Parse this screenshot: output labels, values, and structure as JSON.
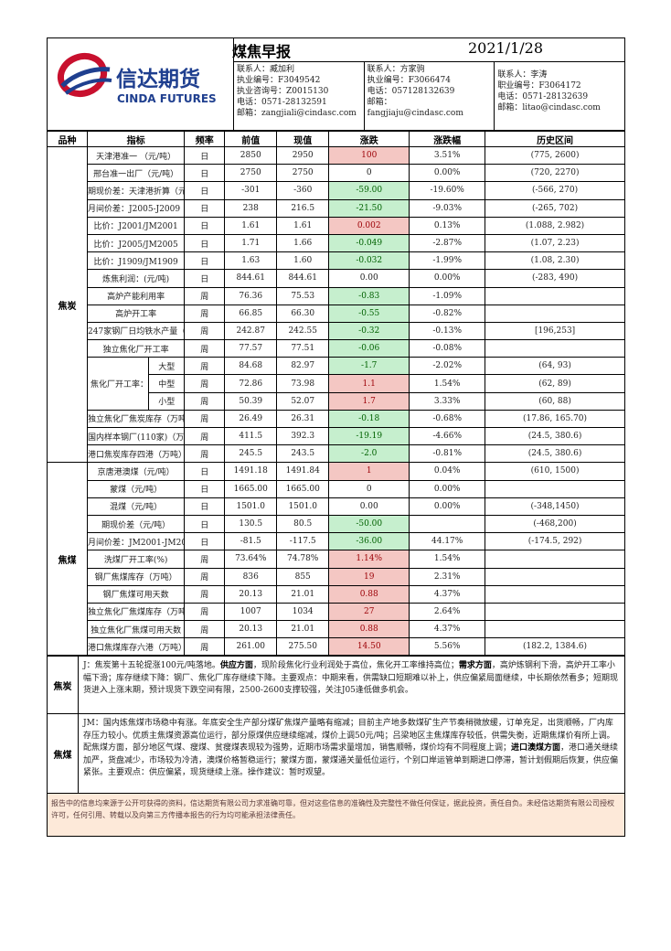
{
  "header": {
    "title": "煤焦早报",
    "date": "2021/1/28",
    "logo_cn": "信达期货",
    "logo_en": "CINDA FUTURES",
    "contacts": [
      [
        "联系人：臧加利",
        "执业编号：F3049542",
        "执业咨询号：Z0015130",
        "电话：0571-28132591",
        "邮箱：zangjiali@cindasc.com"
      ],
      [
        "联系人：方家驹",
        "执业编号：F3066474",
        "电话：057128132639",
        "邮箱：",
        "fangjiaju@cindasc.com"
      ],
      [
        "联系人：李涛",
        "职业编号：F3064172",
        "电话：0571-28132639",
        "邮箱：litao@cindasc.com"
      ]
    ]
  },
  "table": {
    "columns": [
      "品种",
      "指标",
      "频率",
      "前值",
      "现值",
      "涨跌",
      "涨跌幅",
      "历史区间"
    ],
    "coke_category": "焦炭",
    "coal_category": "焦煤",
    "coke_rows": [
      {
        "name": "天津港准一 （元/吨）",
        "freq": "日",
        "prev": "2850",
        "cur": "2950",
        "chg": "100",
        "pct": "3.51%",
        "range": "(775, 2600)",
        "dir": "up"
      },
      {
        "name": "邢台准一出厂（元/吨）",
        "freq": "日",
        "prev": "2750",
        "cur": "2750",
        "chg": "0",
        "pct": "0.00%",
        "range": "(720, 2270)",
        "dir": ""
      },
      {
        "name": "期现价差：天津港折算（元/吨）",
        "freq": "日",
        "prev": "-301",
        "cur": "-360",
        "chg": "-59.00",
        "pct": "-19.60%",
        "range": "(-566, 270)",
        "dir": "down"
      },
      {
        "name": "月间价差：J2005-J2009（元/吨）",
        "freq": "日",
        "prev": "238",
        "cur": "216.5",
        "chg": "-21.50",
        "pct": "-9.03%",
        "range": "(-265, 702)",
        "dir": "down"
      },
      {
        "name": "比价：J2001/JM2001",
        "freq": "日",
        "prev": "1.61",
        "cur": "1.61",
        "chg": "0.002",
        "pct": "0.13%",
        "range": "(1.088, 2.982)",
        "dir": "up"
      },
      {
        "name": "比价：J2005/JM2005",
        "freq": "日",
        "prev": "1.71",
        "cur": "1.66",
        "chg": "-0.049",
        "pct": "-2.87%",
        "range": "(1.07, 2.23)",
        "dir": "down"
      },
      {
        "name": "比价：J1909/JM1909",
        "freq": "日",
        "prev": "1.63",
        "cur": "1.60",
        "chg": "-0.032",
        "pct": "-1.99%",
        "range": "(1.08, 2.30)",
        "dir": "down"
      },
      {
        "name": "炼焦利润：(元/吨)",
        "freq": "日",
        "prev": "844.61",
        "cur": "844.61",
        "chg": "0.00",
        "pct": "0.00%",
        "range": "(-283, 490)",
        "dir": ""
      },
      {
        "name": "高炉产能利用率",
        "freq": "周",
        "prev": "76.36",
        "cur": "75.53",
        "chg": "-0.83",
        "pct": "-1.09%",
        "range": "",
        "dir": "down"
      },
      {
        "name": "高炉开工率",
        "freq": "周",
        "prev": "66.85",
        "cur": "66.30",
        "chg": "-0.55",
        "pct": "-0.82%",
        "range": "",
        "dir": "down"
      },
      {
        "name": "247家钢厂日均铁水产量（万吨）",
        "freq": "周",
        "prev": "242.87",
        "cur": "242.55",
        "chg": "-0.32",
        "pct": "-0.13%",
        "range": "[196,253]",
        "dir": "down"
      },
      {
        "name": "独立焦化厂开工率",
        "freq": "周",
        "prev": "77.57",
        "cur": "77.51",
        "chg": "-0.06",
        "pct": "-0.08%",
        "range": "",
        "dir": "down"
      }
    ],
    "coking_group": {
      "label": "焦化厂开工率：（%）",
      "rows": [
        {
          "name": "大型",
          "freq": "周",
          "prev": "84.68",
          "cur": "82.97",
          "chg": "-1.7",
          "pct": "-2.02%",
          "range": "(64, 93)",
          "dir": "down"
        },
        {
          "name": "中型",
          "freq": "周",
          "prev": "72.86",
          "cur": "73.98",
          "chg": "1.1",
          "pct": "1.54%",
          "range": "(62, 89)",
          "dir": "up"
        },
        {
          "name": "小型",
          "freq": "周",
          "prev": "50.39",
          "cur": "52.07",
          "chg": "1.7",
          "pct": "3.33%",
          "range": "(60, 88)",
          "dir": "up"
        }
      ]
    },
    "coke_rows2": [
      {
        "name": "独立焦化厂焦炭库存（万吨）",
        "freq": "周",
        "prev": "26.49",
        "cur": "26.31",
        "chg": "-0.18",
        "pct": "-0.68%",
        "range": "(17.86, 165.70)",
        "dir": "down"
      },
      {
        "name": "国内样本钢厂(110家)（万吨）",
        "freq": "周",
        "prev": "411.5",
        "cur": "392.3",
        "chg": "-19.19",
        "pct": "-4.66%",
        "range": "(24.5, 380.6)",
        "dir": "down"
      },
      {
        "name": "港口焦炭库存四港（万吨）",
        "freq": "周",
        "prev": "245.5",
        "cur": "243.5",
        "chg": "-2.0",
        "pct": "-0.81%",
        "range": "(24.5, 380.6)",
        "dir": "down"
      }
    ],
    "coal_rows": [
      {
        "name": "京唐港澳煤（元/吨）",
        "freq": "日",
        "prev": "1491.18",
        "cur": "1491.84",
        "chg": "1",
        "pct": "0.04%",
        "range": "(610, 1500)",
        "dir": "up"
      },
      {
        "name": "蒙煤（元/吨）",
        "freq": "日",
        "prev": "1665.00",
        "cur": "1665.00",
        "chg": "0",
        "pct": "0.00%",
        "range": "",
        "dir": ""
      },
      {
        "name": "混煤（元/吨）",
        "freq": "日",
        "prev": "1501.0",
        "cur": "1501.0",
        "chg": "0.00",
        "pct": "0.00%",
        "range": "(-348,1450)",
        "dir": ""
      },
      {
        "name": "期现价差（元/吨）",
        "freq": "日",
        "prev": "130.5",
        "cur": "80.5",
        "chg": "-50.00",
        "pct": "",
        "range": "(-468,200)",
        "dir": "down"
      },
      {
        "name": "月间价差：JM2001-JM2005",
        "freq": "日",
        "prev": "-81.5",
        "cur": "-117.5",
        "chg": "-36.00",
        "pct": "44.17%",
        "range": "(-174.5, 292)",
        "dir": "down"
      },
      {
        "name": "洗煤厂开工率(%)",
        "freq": "周",
        "prev": "73.64%",
        "cur": "74.78%",
        "chg": "1.14%",
        "pct": "1.54%",
        "range": "",
        "dir": "up"
      },
      {
        "name": "钢厂焦煤库存（万吨）",
        "freq": "周",
        "prev": "836",
        "cur": "855",
        "chg": "19",
        "pct": "2.31%",
        "range": "",
        "dir": "up"
      },
      {
        "name": "钢厂焦煤可用天数",
        "freq": "周",
        "prev": "20.13",
        "cur": "21.01",
        "chg": "0.88",
        "pct": "4.37%",
        "range": "",
        "dir": "up"
      },
      {
        "name": "独立焦化厂焦煤库存（万吨）",
        "freq": "周",
        "prev": "1007",
        "cur": "1034",
        "chg": "27",
        "pct": "2.64%",
        "range": "",
        "dir": "up"
      },
      {
        "name": "独立焦化厂焦煤可用天数",
        "freq": "周",
        "prev": "20.13",
        "cur": "21.01",
        "chg": "0.88",
        "pct": "4.37%",
        "range": "",
        "dir": "up"
      },
      {
        "name": "港口焦煤库存六港（万吨）",
        "freq": "周",
        "prev": "261.00",
        "cur": "275.50",
        "chg": "14.50",
        "pct": "5.56%",
        "range": "(182.2, 1384.6)",
        "dir": "up"
      }
    ]
  },
  "notes": {
    "coke_label": "焦炭",
    "coke_a": "J：焦炭第十五轮提涨100元/吨落地。",
    "coke_kw1": "供应方面",
    "coke_b": "，现阶段焦化行业利润处于高位，焦化开工率维持高位；",
    "coke_kw2": "需求方面",
    "coke_c": "，高炉炼钢利下滑，高炉开工率小幅下滑；库存继续下降：钢厂、焦化厂库存继续下降。主要观点：中期来看，供需缺口短期难以补上，供应偏紧局面继续，中长期依然看多；短期现货进入上涨末期，预计现货下跌空间有限，2500-2600支撑较强，关注J05逢低做多机会。",
    "coal_label": "焦煤",
    "coal_a": "JM：国内炼焦煤市场稳中有涨。年底安全生产部分煤矿焦煤产量略有缩减；目前主产地多数煤矿生产节奏稍微放缓，订单充足，出货顺畅，厂内库存压力较小。优质主焦煤资源高位运行，部分原煤供应继续缩减，煤价上调50元/吨；吕梁地区主焦煤库存较低，供需失衡，近期焦煤价有所上调。配焦煤方面，部分地区气煤、瘦煤、贫瘦煤表现较为强势，近期市场需求量增加，销售顺畅，煤价均有不同程度上调；",
    "coal_kw": "进口澳煤方面",
    "coal_b": "，港口通关继续加严，货盘减少，市场较为冷清，澳煤价格暂稳运行；蒙煤方面，蒙煤通关量低位运行，个别口岸运管单到期进口停滞，暂计划假期后恢复，供应偏紧张。主要观点：供应偏紧，现货继续上涨。操作建议：暂时观望。"
  },
  "disclaimer": "报告中的信息均来源于公开可获得的资料，信达期货有限公司力求准确可靠，但对这些信息的准确性及完整性不做任何保证，据此投资，责任自负。未经信达期货有限公司授权许可，任何引用、转载以及向第三方传播本报告的行为均可能承担法律责任。",
  "colors": {
    "up_bg": "#f4c7c3",
    "down_bg": "#c6efce",
    "logo_red": "#c8102e",
    "logo_blue": "#1f3f8f",
    "disclaimer_bg": "#fde9d9"
  }
}
